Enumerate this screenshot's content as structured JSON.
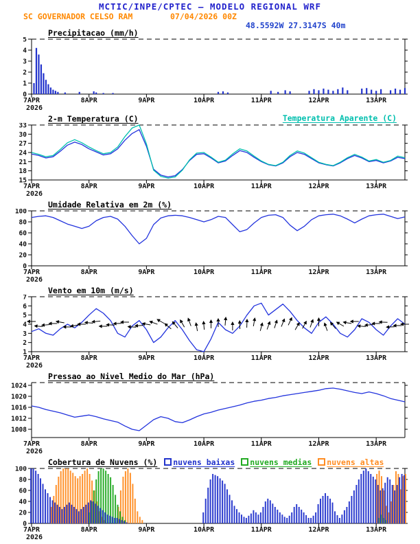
{
  "header": {
    "title": "MCTIC/INPE/CPTEC — MODELO REGIONAL WRF",
    "station": "SC GOVERNADOR CELSO RAM",
    "run": "07/04/2026 00Z",
    "coords": "48.5592W 27.3147S 40m"
  },
  "colors": {
    "header_blue": "#2222cc",
    "header_orange": "#ff8800",
    "coords_blue": "#2244cc",
    "line_blue": "#2233dd",
    "apparent_cyan": "#00bfae",
    "cloud_low_blue": "#2233cc",
    "cloud_mid_green": "#22aa22",
    "cloud_high_orange": "#ff8c22"
  },
  "x_axis": {
    "tick_labels": [
      "7APR",
      "8APR",
      "9APR",
      "10APR",
      "11APR",
      "12APR",
      "13APR"
    ],
    "year_label": "2026",
    "hours_total": 156,
    "hours_per_day": 24
  },
  "chart_data": [
    {
      "type": "bar",
      "title": "Precipitacao (mm/h)",
      "ylabel": "mm/h",
      "ylim": [
        0,
        5
      ],
      "yticks": [
        0,
        1,
        2,
        3,
        4,
        5
      ],
      "color": "#2233cc",
      "x_hours": [
        1,
        2,
        3,
        4,
        5,
        6,
        7,
        8,
        9,
        10,
        11,
        14,
        20,
        26,
        27,
        30,
        34,
        78,
        80,
        82,
        100,
        103,
        106,
        108,
        116,
        118,
        120,
        122,
        124,
        126,
        128,
        130,
        132,
        138,
        140,
        142,
        144,
        146,
        150,
        152,
        154,
        156
      ],
      "values": [
        1.0,
        4.2,
        3.6,
        2.7,
        1.9,
        1.3,
        0.9,
        0.6,
        0.4,
        0.3,
        0.2,
        0.15,
        0.2,
        0.25,
        0.15,
        0.1,
        0.1,
        0.2,
        0.25,
        0.15,
        0.3,
        0.2,
        0.35,
        0.25,
        0.3,
        0.45,
        0.35,
        0.5,
        0.4,
        0.3,
        0.45,
        0.6,
        0.35,
        0.5,
        0.55,
        0.4,
        0.3,
        0.45,
        0.35,
        0.5,
        0.4,
        0.55
      ]
    },
    {
      "type": "line",
      "title": "2-m Temperatura (C)",
      "ylabel": "C",
      "ylim": [
        15,
        33
      ],
      "yticks": [
        15,
        18,
        21,
        24,
        27,
        30,
        33
      ],
      "step_hours": 3,
      "series": [
        {
          "name": "2-m Temperatura (C)",
          "color": "#2233dd",
          "values": [
            23.5,
            23.0,
            22.2,
            22.6,
            24.4,
            26.4,
            27.4,
            26.6,
            25.2,
            24.2,
            23.2,
            23.6,
            25.2,
            28.0,
            30.2,
            31.5,
            26.0,
            18.5,
            16.6,
            16.0,
            16.4,
            18.4,
            21.4,
            23.4,
            23.6,
            22.2,
            20.6,
            21.2,
            23.0,
            24.6,
            24.0,
            22.4,
            21.0,
            20.0,
            19.6,
            20.6,
            22.6,
            24.0,
            23.4,
            22.0,
            20.6,
            20.0,
            19.6,
            20.6,
            22.0,
            23.0,
            22.2,
            21.0,
            21.4,
            20.6,
            21.2,
            22.4,
            22.0
          ]
        },
        {
          "name": "Temperatura Aparente (C)",
          "color": "#00bfae",
          "values": [
            24.0,
            23.4,
            22.6,
            23.0,
            25.0,
            27.2,
            28.2,
            27.2,
            25.8,
            24.6,
            23.6,
            24.0,
            25.8,
            29.2,
            32.0,
            33.0,
            26.8,
            18.2,
            16.2,
            15.6,
            16.0,
            18.2,
            21.6,
            23.8,
            24.0,
            22.5,
            20.8,
            21.5,
            23.5,
            25.2,
            24.5,
            22.8,
            21.2,
            20.1,
            19.7,
            20.8,
            23.0,
            24.5,
            23.8,
            22.3,
            20.8,
            20.1,
            19.7,
            20.8,
            22.3,
            23.4,
            22.5,
            21.2,
            21.7,
            20.8,
            21.4,
            22.8,
            22.3
          ]
        }
      ]
    },
    {
      "type": "line",
      "title": "Umidade Relativa em 2m (%)",
      "ylabel": "%",
      "ylim": [
        0,
        100
      ],
      "yticks": [
        0,
        20,
        40,
        60,
        80,
        100
      ],
      "step_hours": 3,
      "series": [
        {
          "name": "Umidade Relativa em 2m",
          "color": "#2233dd",
          "values": [
            88,
            90,
            91,
            88,
            82,
            76,
            72,
            68,
            72,
            82,
            88,
            90,
            85,
            72,
            55,
            40,
            50,
            75,
            87,
            91,
            92,
            91,
            88,
            84,
            80,
            84,
            90,
            88,
            75,
            62,
            66,
            78,
            88,
            92,
            93,
            88,
            74,
            64,
            72,
            84,
            91,
            93,
            94,
            91,
            85,
            78,
            85,
            91,
            93,
            94,
            90,
            86,
            89
          ]
        }
      ]
    },
    {
      "type": "wind",
      "title": "Vento em 10m (m/s)",
      "ylabel": "m/s",
      "ylim": [
        1,
        7
      ],
      "yticks": [
        1,
        2,
        3,
        4,
        5,
        6,
        7
      ],
      "step_hours": 3,
      "arrow_level": 4,
      "directions_deg": [
        180,
        175,
        185,
        180,
        170,
        180,
        190,
        180,
        175,
        185,
        180,
        178,
        182,
        180,
        176,
        184,
        170,
        160,
        150,
        140,
        130,
        120,
        110,
        100,
        95,
        90,
        90,
        85,
        90,
        92,
        88,
        80,
        75,
        70,
        72,
        68,
        65,
        60,
        62,
        70,
        90,
        110,
        130,
        150,
        170,
        180,
        175,
        185,
        180,
        178,
        182,
        180,
        180
      ],
      "series": [
        {
          "name": "Vento em 10m",
          "color": "#2233dd",
          "values": [
            3.2,
            3.5,
            3.0,
            2.8,
            3.5,
            4.0,
            3.6,
            4.2,
            5.0,
            5.7,
            5.2,
            4.4,
            3.0,
            2.6,
            3.8,
            4.4,
            3.4,
            2.0,
            2.6,
            3.6,
            4.4,
            3.4,
            2.2,
            1.2,
            1.0,
            2.4,
            4.2,
            3.4,
            3.0,
            3.8,
            5.0,
            6.0,
            6.3,
            5.0,
            5.6,
            6.2,
            5.4,
            4.4,
            3.6,
            3.0,
            4.2,
            4.8,
            4.0,
            3.0,
            2.6,
            3.4,
            4.6,
            4.2,
            3.4,
            2.8,
            3.8,
            4.6,
            4.0
          ]
        }
      ]
    },
    {
      "type": "line",
      "title": "Pressao ao Nivel Medio do Mar (hPa)",
      "ylabel": "hPa",
      "ylim": [
        1005,
        1025
      ],
      "yticks": [
        1008,
        1012,
        1016,
        1020,
        1024
      ],
      "step_hours": 3,
      "series": [
        {
          "name": "Pressao ao Nivel Medio do Mar",
          "color": "#2233dd",
          "values": [
            1016.5,
            1016.0,
            1015.2,
            1014.6,
            1014.0,
            1013.2,
            1012.4,
            1012.8,
            1013.2,
            1012.6,
            1011.8,
            1011.2,
            1010.6,
            1009.2,
            1008.0,
            1007.5,
            1009.5,
            1011.5,
            1012.6,
            1012.0,
            1010.8,
            1010.4,
            1011.4,
            1012.6,
            1013.6,
            1014.2,
            1015.0,
            1015.6,
            1016.2,
            1016.8,
            1017.6,
            1018.2,
            1018.6,
            1019.2,
            1019.6,
            1020.2,
            1020.6,
            1021.0,
            1021.4,
            1021.8,
            1022.2,
            1022.8,
            1023.0,
            1022.6,
            1022.0,
            1021.4,
            1021.0,
            1021.6,
            1021.0,
            1020.2,
            1019.2,
            1018.6,
            1018.0
          ]
        }
      ]
    },
    {
      "type": "cloud",
      "title": "Cobertura de Nuvens (%)",
      "ylabel": "%",
      "ylim": [
        0,
        100
      ],
      "yticks": [
        0,
        20,
        40,
        60,
        80,
        100
      ],
      "step_hours": 1,
      "series": [
        {
          "name": "nuvens baixas",
          "color": "#2233cc",
          "values": [
            100,
            100,
            96,
            90,
            82,
            72,
            62,
            55,
            48,
            42,
            38,
            34,
            30,
            26,
            30,
            34,
            38,
            34,
            30,
            26,
            22,
            26,
            30,
            34,
            38,
            42,
            40,
            36,
            32,
            28,
            24,
            20,
            16,
            14,
            12,
            10,
            10,
            8,
            6,
            4,
            2,
            0,
            0,
            0,
            0,
            0,
            0,
            0,
            0,
            0,
            0,
            0,
            0,
            0,
            0,
            0,
            0,
            0,
            0,
            0,
            0,
            0,
            0,
            0,
            0,
            0,
            0,
            0,
            0,
            0,
            0,
            0,
            20,
            45,
            65,
            80,
            90,
            88,
            86,
            82,
            78,
            72,
            62,
            52,
            42,
            32,
            26,
            20,
            16,
            12,
            10,
            14,
            18,
            24,
            20,
            16,
            20,
            30,
            40,
            45,
            42,
            36,
            30,
            25,
            20,
            16,
            12,
            10,
            14,
            20,
            30,
            35,
            30,
            25,
            20,
            15,
            10,
            10,
            14,
            20,
            35,
            45,
            50,
            55,
            50,
            45,
            38,
            22,
            15,
            10,
            16,
            24,
            30,
            40,
            50,
            60,
            70,
            80,
            90,
            96,
            100,
            95,
            90,
            85,
            80,
            70,
            60,
            64,
            74,
            84,
            80,
            70,
            60,
            70,
            84,
            90,
            88
          ]
        },
        {
          "name": "nuvens medias",
          "color": "#22aa22",
          "values": [
            0,
            0,
            0,
            0,
            0,
            0,
            0,
            0,
            0,
            0,
            0,
            0,
            0,
            0,
            0,
            0,
            0,
            0,
            0,
            0,
            0,
            0,
            0,
            0,
            20,
            40,
            60,
            80,
            95,
            100,
            100,
            96,
            90,
            84,
            70,
            52,
            34,
            22,
            12,
            6,
            0,
            0,
            0,
            0,
            0,
            0,
            0,
            0,
            0,
            0,
            0,
            0,
            0,
            0,
            0,
            0,
            0,
            0,
            0,
            0,
            0,
            0,
            0,
            0,
            0,
            0,
            0,
            0,
            0,
            0,
            0,
            0,
            0,
            0,
            0,
            0,
            0,
            0,
            0,
            0,
            0,
            0,
            0,
            0,
            0,
            0,
            0,
            0,
            0,
            0,
            0,
            0,
            0,
            0,
            0,
            0,
            0,
            0,
            0,
            0,
            0,
            0,
            0,
            0,
            0,
            0,
            0,
            0,
            0,
            0,
            0,
            0,
            0,
            0,
            0,
            0,
            0,
            0,
            0,
            0,
            0,
            0,
            0,
            0,
            0,
            0,
            0,
            0,
            0,
            0,
            0,
            0,
            0,
            0,
            0,
            0,
            0,
            0,
            0,
            0,
            0,
            0,
            0,
            0,
            0,
            10,
            16,
            10,
            6,
            0,
            0,
            0,
            0,
            0,
            0,
            0,
            0
          ]
        },
        {
          "name": "nuvens altas",
          "color": "#ff8c22",
          "values": [
            0,
            0,
            0,
            0,
            0,
            0,
            0,
            0,
            30,
            50,
            70,
            85,
            95,
            100,
            100,
            100,
            96,
            92,
            86,
            82,
            86,
            90,
            96,
            100,
            90,
            78,
            60,
            40,
            22,
            12,
            6,
            0,
            0,
            0,
            0,
            0,
            30,
            60,
            85,
            95,
            100,
            92,
            72,
            45,
            22,
            12,
            6,
            0,
            0,
            0,
            0,
            0,
            0,
            0,
            0,
            0,
            0,
            0,
            0,
            0,
            0,
            0,
            0,
            0,
            0,
            0,
            0,
            0,
            0,
            0,
            0,
            0,
            0,
            0,
            0,
            0,
            0,
            0,
            0,
            0,
            0,
            0,
            0,
            0,
            0,
            0,
            0,
            0,
            0,
            0,
            0,
            0,
            0,
            0,
            0,
            0,
            0,
            0,
            0,
            0,
            0,
            0,
            0,
            0,
            0,
            0,
            0,
            0,
            0,
            0,
            0,
            0,
            0,
            0,
            0,
            0,
            0,
            0,
            0,
            0,
            0,
            0,
            0,
            0,
            0,
            0,
            0,
            0,
            0,
            0,
            0,
            0,
            0,
            0,
            0,
            0,
            0,
            0,
            0,
            0,
            0,
            0,
            0,
            0,
            90,
            96,
            86,
            60,
            32,
            20,
            40,
            70,
            95,
            90,
            62,
            86,
            90
          ]
        }
      ]
    }
  ]
}
